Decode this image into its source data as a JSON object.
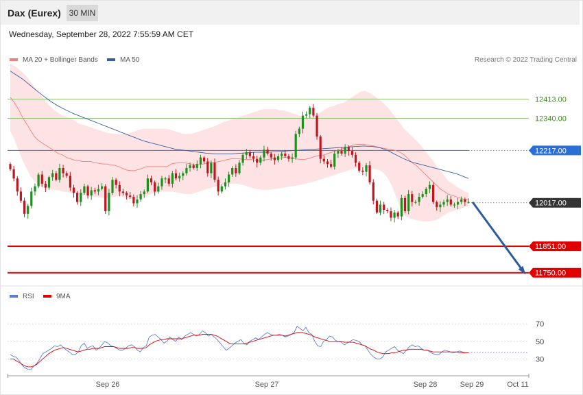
{
  "header": {
    "title": "Dax (Eurex)",
    "timeframe": "30 MIN"
  },
  "timestamp": "Wednesday, September 28, 2022 7:55:59 AM CET",
  "copyright": "Research © 2022 Trading Central",
  "legend_top": [
    {
      "label": "MA 20 + Bollinger Bands",
      "color": "#f08080"
    },
    {
      "label": "MA 50",
      "color": "#3a5fa0"
    }
  ],
  "legend_bottom": [
    {
      "label": "RSI",
      "color": "#5b7fd6"
    },
    {
      "label": "9MA",
      "color": "#e00000"
    }
  ],
  "colors": {
    "up": "#1e8e1e",
    "down": "#c0171f",
    "green_level": "#6ab04c",
    "pivot": "#2b6fd6",
    "support": "#e00000",
    "arrow": "#2c5aa0"
  },
  "chart_data": [
    {
      "type": "candlestick",
      "title": "",
      "x_tick_labels": [
        "Sep 26",
        "Sep 27",
        "Sep 28",
        "Sep 29",
        "Oct 11"
      ],
      "ylim": [
        11710,
        12540
      ],
      "levels": [
        {
          "value": 12413.0,
          "label": "12413.00",
          "kind": "resistance-minor"
        },
        {
          "value": 12340.0,
          "label": "12340.00",
          "kind": "resistance-minor"
        },
        {
          "value": 12217.0,
          "label": "12217.00",
          "kind": "pivot"
        },
        {
          "value": 12017.0,
          "label": "12017.00",
          "kind": "last"
        },
        {
          "value": 11851.0,
          "label": "11851.00",
          "kind": "support"
        },
        {
          "value": 11750.0,
          "label": "11750.00",
          "kind": "support"
        }
      ],
      "candles_close": [
        12145,
        12110,
        12060,
        12025,
        11975,
        12005,
        12060,
        12080,
        12125,
        12090,
        12075,
        12115,
        12130,
        12105,
        12150,
        12130,
        12120,
        12075,
        12055,
        12020,
        12055,
        12080,
        12045,
        12065,
        12060,
        12070,
        12080,
        11985,
        12055,
        12105,
        12085,
        12060,
        12055,
        12045,
        12040,
        12015,
        12030,
        12050,
        12060,
        12110,
        12095,
        12060,
        12080,
        12110,
        12110,
        12090,
        12130,
        12110,
        12120,
        12130,
        12150,
        12160,
        12150,
        12165,
        12190,
        12175,
        12130,
        12170,
        12105,
        12060,
        12080,
        12095,
        12125,
        12150,
        12130,
        12170,
        12200,
        12210,
        12195,
        12185,
        12170,
        12190,
        12220,
        12205,
        12190,
        12180,
        12195,
        12205,
        12195,
        12185,
        12190,
        12280,
        12300,
        12350,
        12355,
        12380,
        12350,
        12270,
        12185,
        12175,
        12165,
        12155,
        12205,
        12215,
        12205,
        12230,
        12215,
        12200,
        12170,
        12140,
        12135,
        12160,
        12095,
        12025,
        11980,
        12010,
        11990,
        11985,
        11960,
        11980,
        11965,
        12035,
        11985,
        12050,
        12020,
        12020,
        12040,
        12050,
        12070,
        12085,
        12020,
        12000,
        12010,
        12020,
        12030,
        12010,
        12010,
        12020,
        12030,
        12020,
        12020
      ],
      "ma20": [
        12420,
        12400,
        12375,
        12345,
        12320,
        12295,
        12270,
        12255,
        12245,
        12235,
        12225,
        12215,
        12205,
        12200,
        12190,
        12185,
        12180,
        12178,
        12175,
        12175,
        12175,
        12170,
        12168,
        12165,
        12165,
        12162,
        12160,
        12155,
        12148,
        12142,
        12140,
        12140,
        12145,
        12150,
        12155,
        12155,
        12155,
        12155,
        12155,
        12155,
        12165,
        12168,
        12170,
        12170,
        12168,
        12165,
        12163,
        12163,
        12165,
        12168,
        12170,
        12172,
        12175,
        12178,
        12182,
        12185,
        12185,
        12185,
        12183,
        12182,
        12182,
        12180,
        12180,
        12180,
        12182,
        12185,
        12187,
        12188,
        12190,
        12190,
        12188,
        12185,
        12183,
        12182,
        12185,
        12190,
        12195,
        12198,
        12200,
        12205,
        12210,
        12215,
        12220,
        12225,
        12230,
        12236,
        12240,
        12240,
        12240,
        12238,
        12235,
        12232,
        12228,
        12225,
        12222,
        12220,
        12216,
        12210,
        12200,
        12185,
        12170,
        12160,
        12145,
        12130,
        12115,
        12100,
        12085,
        12070,
        12060,
        12050,
        12045,
        12040,
        12035,
        12030,
        12030
      ],
      "bb_upper": [
        12550,
        12540,
        12530,
        12515,
        12500,
        12480,
        12460,
        12440,
        12420,
        12400,
        12385,
        12370,
        12360,
        12350,
        12345,
        12340,
        12330,
        12320,
        12315,
        12310,
        12305,
        12300,
        12295,
        12290,
        12285,
        12282,
        12280,
        12280,
        12280,
        12280,
        12285,
        12290,
        12295,
        12300,
        12300,
        12300,
        12300,
        12300,
        12300,
        12300,
        12295,
        12290,
        12285,
        12280,
        12280,
        12280,
        12285,
        12290,
        12295,
        12300,
        12305,
        12310,
        12318,
        12325,
        12330,
        12335,
        12340,
        12345,
        12350,
        12355,
        12360,
        12365,
        12370,
        12375,
        12375,
        12375,
        12375,
        12370,
        12370,
        12365,
        12360,
        12355,
        12350,
        12345,
        12340,
        12345,
        12350,
        12360,
        12370,
        12380,
        12385,
        12390,
        12395,
        12400,
        12410,
        12420,
        12430,
        12440,
        12445,
        12440,
        12430,
        12420,
        12410,
        12395,
        12380,
        12360,
        12340,
        12320,
        12300,
        12285,
        12270,
        12255,
        12240,
        12220,
        12200,
        12180,
        12160,
        12140,
        12120,
        12100,
        12090,
        12080,
        12070,
        12060,
        12055
      ],
      "bb_lower": [
        12290,
        12260,
        12220,
        12180,
        12150,
        12120,
        12100,
        12085,
        12075,
        12070,
        12068,
        12066,
        12065,
        12060,
        12058,
        12055,
        12053,
        12050,
        12048,
        12045,
        12042,
        12040,
        12038,
        12036,
        12036,
        12038,
        12040,
        12045,
        12040,
        12035,
        12030,
        12030,
        12035,
        12040,
        12045,
        12050,
        12055,
        12058,
        12060,
        12060,
        12060,
        12058,
        12055,
        12052,
        12050,
        12050,
        12055,
        12060,
        12065,
        12070,
        12075,
        12080,
        12082,
        12085,
        12088,
        12090,
        12090,
        12088,
        12085,
        12080,
        12075,
        12070,
        12068,
        12066,
        12066,
        12068,
        12070,
        12072,
        12075,
        12078,
        12080,
        12082,
        12085,
        12088,
        12092,
        12096,
        12100,
        12105,
        12110,
        12115,
        12120,
        12125,
        12130,
        12135,
        12140,
        12145,
        12150,
        12152,
        12152,
        12150,
        12148,
        12145,
        12140,
        12130,
        12110,
        12080,
        12040,
        12000,
        11970,
        11960,
        11955,
        11950,
        11948,
        11946,
        11946,
        11948,
        11952,
        11960,
        11970,
        11980,
        11985,
        11990,
        11995,
        12000,
        12005
      ],
      "ma50": [
        12520,
        12510,
        12500,
        12490,
        12478,
        12465,
        12452,
        12440,
        12428,
        12416,
        12405,
        12395,
        12386,
        12378,
        12370,
        12363,
        12356,
        12350,
        12344,
        12338,
        12332,
        12326,
        12320,
        12314,
        12308,
        12302,
        12296,
        12290,
        12284,
        12278,
        12272,
        12266,
        12260,
        12254,
        12250,
        12246,
        12242,
        12238,
        12234,
        12230,
        12226,
        12222,
        12220,
        12218,
        12216,
        12214,
        12212,
        12210,
        12208,
        12206,
        12205,
        12204,
        12204,
        12204,
        12204,
        12204,
        12205,
        12206,
        12207,
        12208,
        12209,
        12210,
        12210,
        12210,
        12210,
        12211,
        12212,
        12213,
        12214,
        12215,
        12216,
        12217,
        12218,
        12219,
        12220,
        12221,
        12222,
        12223,
        12224,
        12225,
        12226,
        12227,
        12228,
        12229,
        12230,
        12231,
        12232,
        12233,
        12234,
        12233,
        12232,
        12230,
        12227,
        12222,
        12216,
        12208,
        12200,
        12192,
        12185,
        12178,
        12172,
        12168,
        12164,
        12160,
        12156,
        12152,
        12148,
        12144,
        12140,
        12136,
        12132,
        12128,
        12122,
        12116,
        12110
      ]
    },
    {
      "type": "line",
      "title": "",
      "ylim": [
        10,
        85
      ],
      "y_ticks": [
        70,
        50,
        30
      ],
      "reference_value": 37,
      "series": [
        {
          "name": "RSI",
          "values": [
            35,
            33,
            32,
            28,
            23,
            20,
            18,
            18,
            22,
            25,
            30,
            36,
            38,
            40,
            42,
            45,
            44,
            46,
            43,
            40,
            38,
            35,
            35,
            38,
            45,
            48,
            42,
            44,
            45,
            40,
            42,
            46,
            50,
            48,
            45,
            44,
            42,
            40,
            40,
            42,
            45,
            46,
            44,
            40,
            38,
            43,
            45,
            55,
            57,
            58,
            55,
            52,
            48,
            50,
            55,
            52,
            50,
            55,
            52,
            56,
            58,
            60,
            58,
            56,
            58,
            62,
            60,
            56,
            58,
            55,
            52,
            48,
            44,
            40,
            42,
            45,
            48,
            50,
            52,
            48,
            46,
            50,
            52,
            54,
            52,
            55,
            58,
            60,
            58,
            57,
            57,
            58,
            57,
            55,
            56,
            58,
            60,
            67,
            65,
            62,
            66,
            60,
            58,
            50,
            45,
            44,
            50,
            52,
            56,
            55,
            51,
            50,
            49,
            46,
            48,
            50,
            52,
            51,
            50,
            46,
            45,
            40,
            35,
            32,
            30,
            30,
            32,
            38,
            40,
            42,
            44,
            40,
            38,
            36,
            40,
            44,
            46,
            44,
            45,
            42,
            40,
            40,
            38,
            36,
            35,
            35,
            38,
            40,
            39,
            38,
            37,
            38,
            39,
            38,
            37,
            37
          ]
        },
        {
          "name": "9MA",
          "values": [
            30,
            30,
            28,
            26,
            24,
            22,
            21,
            21,
            22,
            24,
            27,
            30,
            33,
            36,
            38,
            40,
            41,
            42,
            43,
            42,
            41,
            40,
            39,
            38,
            39,
            40,
            41,
            41,
            42,
            42,
            42,
            43,
            44,
            44,
            44,
            44,
            43,
            42,
            42,
            42,
            42,
            43,
            43,
            42,
            42,
            42,
            43,
            46,
            48,
            50,
            51,
            52,
            52,
            53,
            53,
            53,
            53,
            53,
            53,
            54,
            55,
            56,
            57,
            57,
            57,
            58,
            58,
            58,
            58,
            57,
            56,
            54,
            52,
            50,
            48,
            47,
            47,
            47,
            47,
            47,
            48,
            49,
            50,
            51,
            52,
            53,
            54,
            55,
            56,
            57,
            57,
            57,
            57,
            56,
            57,
            58,
            59,
            60,
            60,
            60,
            59,
            58,
            57,
            55,
            54,
            53,
            52,
            51,
            50,
            50,
            50,
            50,
            50,
            49,
            49,
            49,
            49,
            48,
            47,
            46,
            45,
            43,
            41,
            40,
            38,
            37,
            36,
            36,
            36,
            37,
            37,
            38,
            39,
            40,
            40,
            41,
            41,
            41,
            41,
            41,
            40,
            40,
            39,
            38,
            38,
            38,
            38,
            38,
            38,
            38,
            38,
            38,
            37,
            37,
            37,
            37
          ]
        }
      ]
    }
  ]
}
